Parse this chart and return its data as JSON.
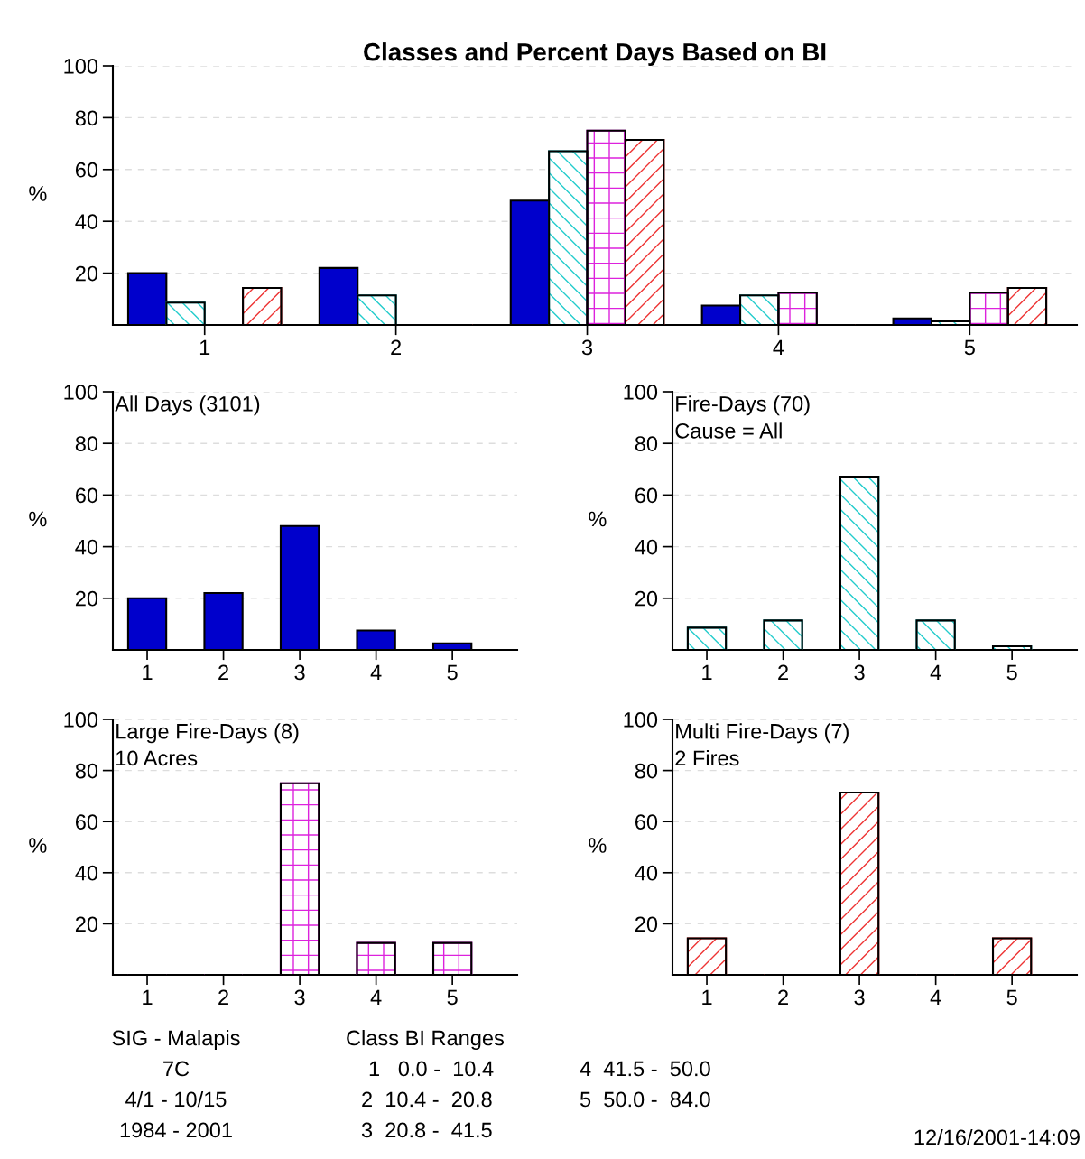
{
  "chart_data": [
    {
      "type": "bar",
      "title": "Classes and Percent Days Based on BI",
      "ylabel": "%",
      "categories": [
        "1",
        "2",
        "3",
        "4",
        "5"
      ],
      "ylim": [
        0,
        100
      ],
      "yticks": [
        20,
        40,
        60,
        80,
        100
      ],
      "grid": "y",
      "legend": false,
      "series": [
        {
          "color": "#0000cc",
          "values": [
            20,
            22,
            48,
            7.5,
            2.5
          ]
        },
        {
          "color": "#22cccc",
          "values": [
            8.6,
            11.4,
            67.1,
            11.4,
            1.4
          ]
        },
        {
          "color": "#dd22dd",
          "values": [
            0,
            0,
            75,
            12.5,
            12.5
          ]
        },
        {
          "color": "#ee3333",
          "values": [
            14.3,
            0,
            71.4,
            0,
            14.3
          ]
        }
      ]
    },
    {
      "type": "bar",
      "title": "All Days (3101)",
      "ylabel": "%",
      "categories": [
        "1",
        "2",
        "3",
        "4",
        "5"
      ],
      "ylim": [
        0,
        100
      ],
      "yticks": [
        20,
        40,
        60,
        80,
        100
      ],
      "grid": "y",
      "legend": false,
      "series": [
        {
          "color": "#0000cc",
          "values": [
            20,
            22,
            48,
            7.5,
            2.5
          ]
        }
      ]
    },
    {
      "type": "bar",
      "title": "Fire-Days (70)",
      "subtitle": "Cause = All",
      "ylabel": "%",
      "categories": [
        "1",
        "2",
        "3",
        "4",
        "5"
      ],
      "ylim": [
        0,
        100
      ],
      "yticks": [
        20,
        40,
        60,
        80,
        100
      ],
      "grid": "y",
      "legend": false,
      "series": [
        {
          "color": "#22cccc",
          "values": [
            8.6,
            11.4,
            67.1,
            11.4,
            1.4
          ]
        }
      ]
    },
    {
      "type": "bar",
      "title": "Large Fire-Days (8)",
      "subtitle": "10 Acres",
      "ylabel": "%",
      "categories": [
        "1",
        "2",
        "3",
        "4",
        "5"
      ],
      "ylim": [
        0,
        100
      ],
      "yticks": [
        20,
        40,
        60,
        80,
        100
      ],
      "grid": "y",
      "legend": false,
      "series": [
        {
          "color": "#dd22dd",
          "values": [
            0,
            0,
            75,
            12.5,
            12.5
          ]
        }
      ]
    },
    {
      "type": "bar",
      "title": "Multi Fire-Days (7)",
      "subtitle": "2 Fires",
      "ylabel": "%",
      "categories": [
        "1",
        "2",
        "3",
        "4",
        "5"
      ],
      "ylim": [
        0,
        100
      ],
      "yticks": [
        20,
        40,
        60,
        80,
        100
      ],
      "grid": "y",
      "legend": false,
      "series": [
        {
          "color": "#ee3333",
          "values": [
            14.3,
            0,
            71.4,
            0,
            14.3
          ]
        }
      ]
    },
    {
      "type": "other",
      "annotations": [
        "SIG - Malapis",
        "7C",
        "4/1 - 10/15",
        "1984 - 2001",
        "Class BI Ranges",
        "1   0.0 -  10.4",
        "2  10.4 -  20.8",
        "3  20.8 -  41.5",
        "4  41.5 -  50.0",
        "5  50.0 -  84.0",
        "12/16/2001-14:09"
      ]
    }
  ]
}
